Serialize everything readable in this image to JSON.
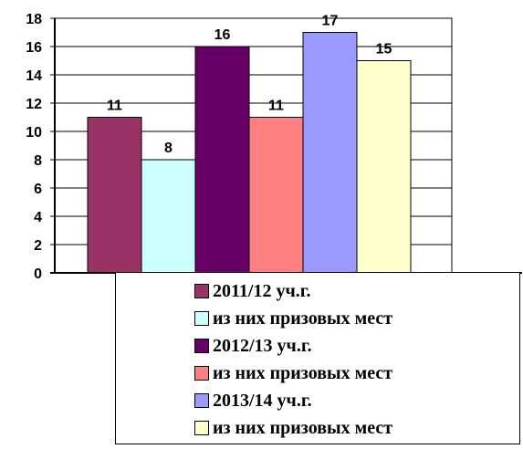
{
  "chart_data": {
    "type": "bar",
    "ylim": [
      0,
      18
    ],
    "yticks": [
      0,
      2,
      4,
      6,
      8,
      10,
      12,
      14,
      16,
      18
    ],
    "grid": true,
    "legend_position": "bottom",
    "series": [
      {
        "name": "2011/12 уч.г.",
        "value": 11,
        "color": "#993366"
      },
      {
        "name": "из них призовых мест",
        "value": 8,
        "color": "#CCFFFF"
      },
      {
        "name": "2012/13 уч.г.",
        "value": 16,
        "color": "#660066"
      },
      {
        "name": "из них призовых мест",
        "value": 11,
        "color": "#FF8080"
      },
      {
        "name": "2013/14 уч.г.",
        "value": 17,
        "color": "#9999FF"
      },
      {
        "name": "из них призовых мест",
        "value": 15,
        "color": "#FFFFCC"
      }
    ]
  }
}
